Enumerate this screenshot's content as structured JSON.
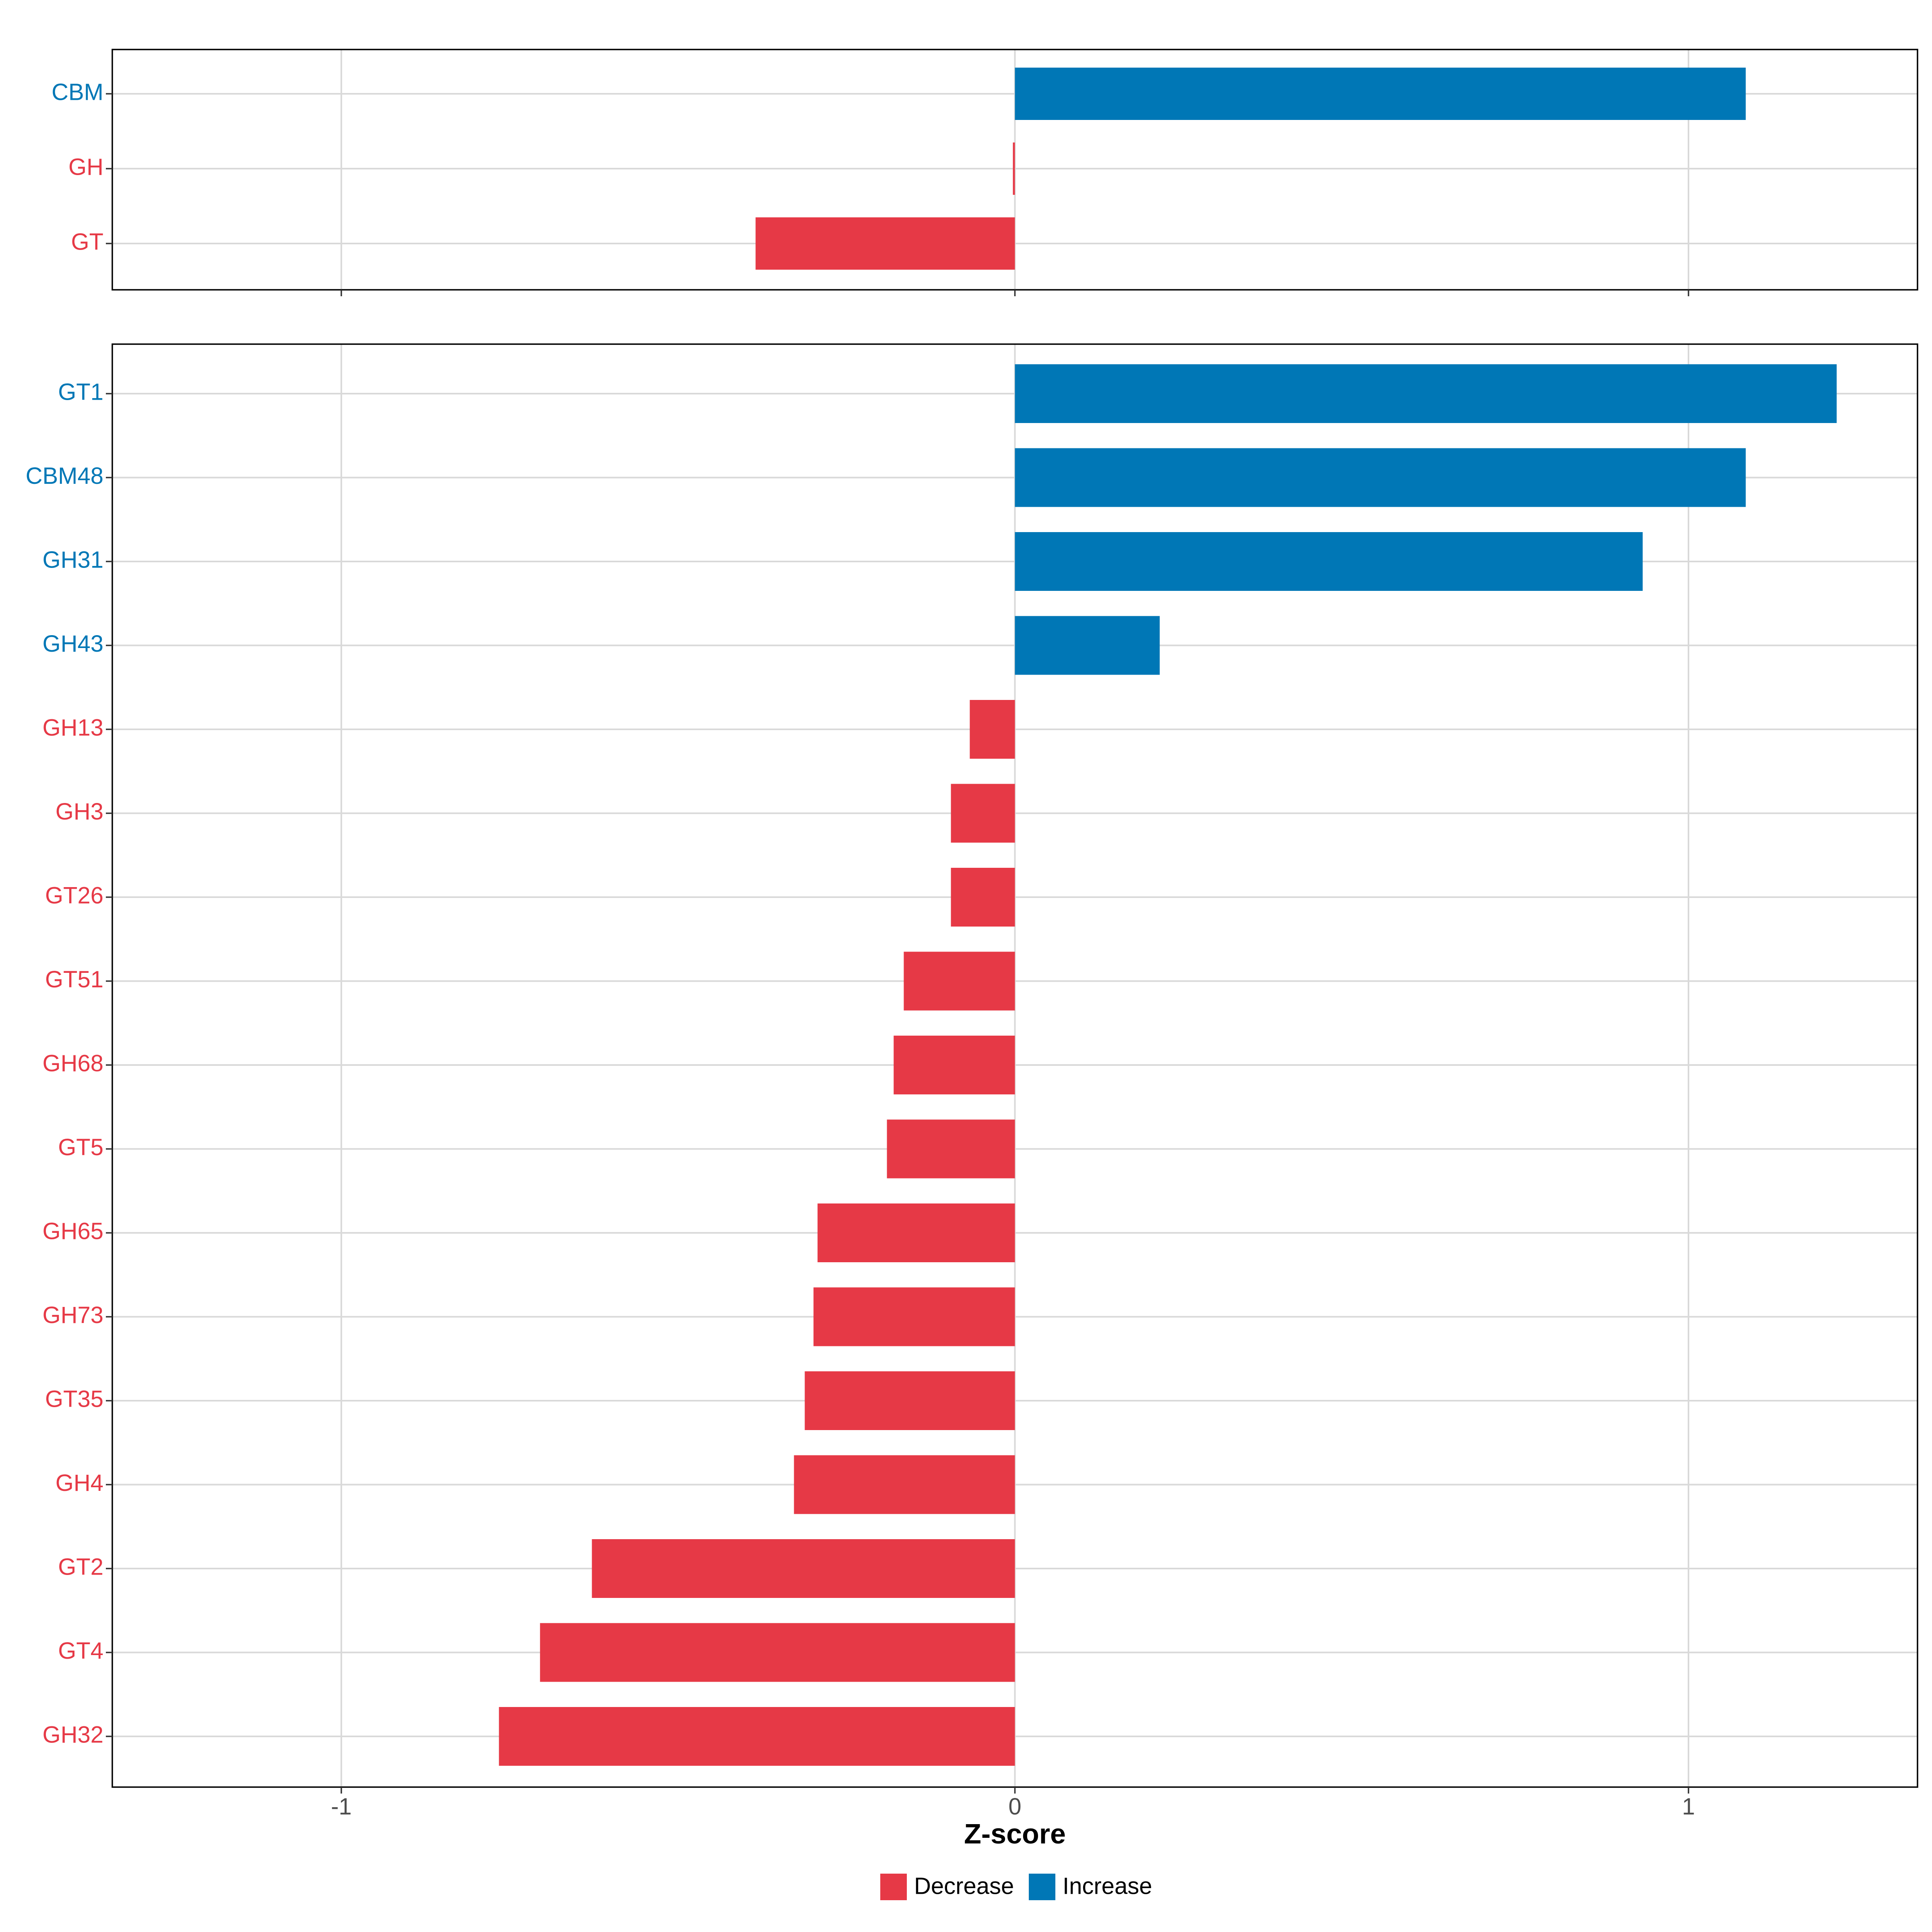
{
  "colors": {
    "decrease": "#e63946",
    "increase": "#0077b6"
  },
  "chart_data": [
    {
      "type": "bar",
      "orientation": "horizontal",
      "panel": "top",
      "categories": [
        "CBM",
        "GH",
        "GT"
      ],
      "values": [
        1.085,
        -0.003,
        -0.385
      ],
      "direction": [
        "Increase",
        "Decrease",
        "Decrease"
      ],
      "xlim": [
        -1.34,
        1.34
      ],
      "xticks": [
        -1,
        0,
        1
      ],
      "grid": true
    },
    {
      "type": "bar",
      "orientation": "horizontal",
      "panel": "bottom",
      "categories": [
        "GT1",
        "CBM48",
        "GH31",
        "GH43",
        "GH13",
        "GH3",
        "GT26",
        "GT51",
        "GH68",
        "GT5",
        "GH65",
        "GH73",
        "GT35",
        "GH4",
        "GT2",
        "GT4",
        "GH32"
      ],
      "values": [
        1.22,
        1.085,
        0.932,
        0.215,
        -0.067,
        -0.095,
        -0.095,
        -0.165,
        -0.18,
        -0.19,
        -0.293,
        -0.299,
        -0.312,
        -0.328,
        -0.628,
        -0.705,
        -0.766
      ],
      "direction": [
        "Increase",
        "Increase",
        "Increase",
        "Increase",
        "Decrease",
        "Decrease",
        "Decrease",
        "Decrease",
        "Decrease",
        "Decrease",
        "Decrease",
        "Decrease",
        "Decrease",
        "Decrease",
        "Decrease",
        "Decrease",
        "Decrease"
      ],
      "xlim": [
        -1.34,
        1.34
      ],
      "xticks": [
        -1,
        0,
        1
      ],
      "xlabel": "Z-score",
      "grid": true
    }
  ],
  "x_tick_labels": [
    "-1",
    "0",
    "1"
  ],
  "legend": {
    "position": "bottom",
    "items": [
      {
        "label": "Decrease",
        "color_key": "decrease"
      },
      {
        "label": "Increase",
        "color_key": "increase"
      }
    ]
  }
}
